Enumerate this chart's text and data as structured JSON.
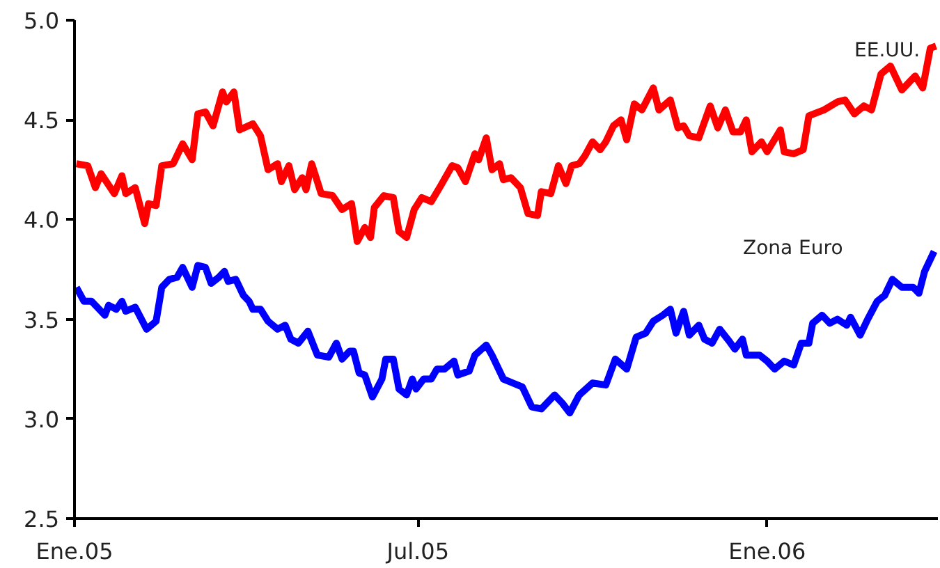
{
  "chart_data": {
    "type": "line",
    "xlim": [
      "2005-01-01",
      "2006-04-01"
    ],
    "xticks": [
      {
        "value": "2005-01-01",
        "label": "Ene.05"
      },
      {
        "value": "2005-07-01",
        "label": "Jul.05"
      },
      {
        "value": "2006-01-01",
        "label": "Ene.06"
      }
    ],
    "ylim": [
      2.5,
      5.0
    ],
    "yticks": [
      {
        "value": 2.5,
        "label": "2.5"
      },
      {
        "value": 3.0,
        "label": "3.0"
      },
      {
        "value": 3.5,
        "label": "3.5"
      },
      {
        "value": 4.0,
        "label": "4.0"
      },
      {
        "value": 4.5,
        "label": "4.5"
      },
      {
        "value": 5.0,
        "label": "5.0"
      }
    ],
    "grid": false,
    "legend": false,
    "marker": "none",
    "line_style": "solid",
    "series": [
      {
        "name": "EE.UU.",
        "color": "#ff0000",
        "x": [
          "2005-01-02",
          "2005-01-08",
          "2005-01-12",
          "2005-01-15",
          "2005-01-22",
          "2005-01-26",
          "2005-01-28",
          "2005-02-02",
          "2005-02-07",
          "2005-02-09",
          "2005-02-13",
          "2005-02-16",
          "2005-02-22",
          "2005-02-27",
          "2005-03-04",
          "2005-03-07",
          "2005-03-11",
          "2005-03-15",
          "2005-03-20",
          "2005-03-22",
          "2005-03-26",
          "2005-03-29",
          "2005-04-05",
          "2005-04-09",
          "2005-04-13",
          "2005-04-18",
          "2005-04-20",
          "2005-04-24",
          "2005-04-27",
          "2005-05-01",
          "2005-05-03",
          "2005-05-06",
          "2005-05-11",
          "2005-05-17",
          "2005-05-22",
          "2005-05-27",
          "2005-05-30",
          "2005-06-03",
          "2005-06-06",
          "2005-06-08",
          "2005-06-13",
          "2005-06-18",
          "2005-06-21",
          "2005-06-25",
          "2005-06-29",
          "2005-07-03",
          "2005-07-08",
          "2005-07-13",
          "2005-07-19",
          "2005-07-22",
          "2005-07-26",
          "2005-07-31",
          "2005-08-02",
          "2005-08-06",
          "2005-08-09",
          "2005-08-13",
          "2005-08-15",
          "2005-08-19",
          "2005-08-24",
          "2005-08-28",
          "2005-09-02",
          "2005-09-04",
          "2005-09-09",
          "2005-09-13",
          "2005-09-17",
          "2005-09-20",
          "2005-09-24",
          "2005-09-27",
          "2005-10-01",
          "2005-10-05",
          "2005-10-08",
          "2005-10-12",
          "2005-10-16",
          "2005-10-19",
          "2005-10-23",
          "2005-10-27",
          "2005-11-02",
          "2005-11-05",
          "2005-11-11",
          "2005-11-15",
          "2005-11-18",
          "2005-11-21",
          "2005-11-26",
          "2005-12-02",
          "2005-12-06",
          "2005-12-10",
          "2005-12-14",
          "2005-12-18",
          "2005-12-21",
          "2005-12-24",
          "2005-12-29",
          "2006-01-01",
          "2006-01-08",
          "2006-01-10",
          "2006-01-15",
          "2006-01-20",
          "2006-01-23",
          "2006-01-31",
          "2006-02-07",
          "2006-02-11",
          "2006-02-16",
          "2006-02-21",
          "2006-02-25",
          "2006-03-02",
          "2006-03-07",
          "2006-03-13",
          "2006-03-17",
          "2006-03-20",
          "2006-03-24",
          "2006-03-28",
          "2006-03-31"
        ],
        "values": [
          4.28,
          4.27,
          4.16,
          4.23,
          4.13,
          4.22,
          4.13,
          4.16,
          3.98,
          4.08,
          4.07,
          4.27,
          4.28,
          4.38,
          4.3,
          4.53,
          4.54,
          4.47,
          4.64,
          4.59,
          4.64,
          4.45,
          4.48,
          4.42,
          4.25,
          4.28,
          4.19,
          4.27,
          4.15,
          4.21,
          4.15,
          4.28,
          4.13,
          4.12,
          4.05,
          4.08,
          3.89,
          3.96,
          3.91,
          4.06,
          4.12,
          4.11,
          3.94,
          3.91,
          4.05,
          4.11,
          4.09,
          4.17,
          4.27,
          4.26,
          4.19,
          4.33,
          4.3,
          4.41,
          4.25,
          4.28,
          4.2,
          4.21,
          4.16,
          4.03,
          4.02,
          4.14,
          4.13,
          4.27,
          4.18,
          4.27,
          4.28,
          4.32,
          4.39,
          4.35,
          4.39,
          4.47,
          4.5,
          4.4,
          4.58,
          4.55,
          4.66,
          4.55,
          4.6,
          4.46,
          4.47,
          4.42,
          4.41,
          4.57,
          4.46,
          4.55,
          4.44,
          4.44,
          4.5,
          4.34,
          4.39,
          4.34,
          4.45,
          4.34,
          4.33,
          4.35,
          4.52,
          4.55,
          4.59,
          4.6,
          4.53,
          4.57,
          4.55,
          4.73,
          4.77,
          4.65,
          4.69,
          4.72,
          4.66,
          4.86,
          4.87
        ]
      },
      {
        "name": "Zona Euro",
        "color": "#0000ff",
        "x": [
          "2005-01-02",
          "2005-01-06",
          "2005-01-10",
          "2005-01-13",
          "2005-01-17",
          "2005-01-19",
          "2005-01-23",
          "2005-01-26",
          "2005-01-28",
          "2005-02-02",
          "2005-02-08",
          "2005-02-13",
          "2005-02-16",
          "2005-02-20",
          "2005-02-24",
          "2005-02-27",
          "2005-03-04",
          "2005-03-07",
          "2005-03-11",
          "2005-03-14",
          "2005-03-18",
          "2005-03-21",
          "2005-03-23",
          "2005-03-27",
          "2005-03-31",
          "2005-04-03",
          "2005-04-05",
          "2005-04-09",
          "2005-04-13",
          "2005-04-18",
          "2005-04-22",
          "2005-04-25",
          "2005-04-29",
          "2005-05-04",
          "2005-05-09",
          "2005-05-15",
          "2005-05-19",
          "2005-05-22",
          "2005-05-26",
          "2005-05-28",
          "2005-05-31",
          "2005-06-03",
          "2005-06-07",
          "2005-06-12",
          "2005-06-14",
          "2005-06-18",
          "2005-06-21",
          "2005-06-25",
          "2005-06-28",
          "2005-06-30",
          "2005-07-04",
          "2005-07-08",
          "2005-07-11",
          "2005-07-15",
          "2005-07-20",
          "2005-07-22",
          "2005-07-28",
          "2005-07-31",
          "2005-08-06",
          "2005-08-09",
          "2005-08-15",
          "2005-08-20",
          "2005-08-25",
          "2005-08-30",
          "2005-09-04",
          "2005-09-08",
          "2005-09-11",
          "2005-09-15",
          "2005-09-19",
          "2005-09-24",
          "2005-10-01",
          "2005-10-08",
          "2005-10-13",
          "2005-10-19",
          "2005-10-24",
          "2005-10-29",
          "2005-11-02",
          "2005-11-07",
          "2005-11-11",
          "2005-11-14",
          "2005-11-18",
          "2005-11-21",
          "2005-11-26",
          "2005-11-29",
          "2005-12-03",
          "2005-12-07",
          "2005-12-12",
          "2005-12-15",
          "2005-12-19",
          "2005-12-21",
          "2005-12-28",
          "2006-01-01",
          "2006-01-05",
          "2006-01-10",
          "2006-01-15",
          "2006-01-19",
          "2006-01-23",
          "2006-01-25",
          "2006-01-30",
          "2006-02-03",
          "2006-02-07",
          "2006-02-12",
          "2006-02-14",
          "2006-02-19",
          "2006-02-23",
          "2006-02-28",
          "2006-03-04",
          "2006-03-08",
          "2006-03-13",
          "2006-03-19",
          "2006-03-22",
          "2006-03-25",
          "2006-03-30"
        ],
        "values": [
          3.66,
          3.59,
          3.59,
          3.56,
          3.52,
          3.57,
          3.55,
          3.59,
          3.54,
          3.56,
          3.45,
          3.49,
          3.66,
          3.7,
          3.71,
          3.76,
          3.66,
          3.77,
          3.76,
          3.68,
          3.71,
          3.74,
          3.69,
          3.7,
          3.62,
          3.59,
          3.55,
          3.55,
          3.49,
          3.45,
          3.47,
          3.4,
          3.38,
          3.44,
          3.32,
          3.31,
          3.38,
          3.3,
          3.34,
          3.34,
          3.23,
          3.22,
          3.11,
          3.2,
          3.3,
          3.3,
          3.15,
          3.12,
          3.2,
          3.15,
          3.2,
          3.2,
          3.25,
          3.25,
          3.29,
          3.22,
          3.24,
          3.32,
          3.37,
          3.32,
          3.2,
          3.18,
          3.16,
          3.06,
          3.05,
          3.09,
          3.12,
          3.08,
          3.03,
          3.12,
          3.18,
          3.17,
          3.3,
          3.25,
          3.41,
          3.43,
          3.49,
          3.52,
          3.55,
          3.43,
          3.54,
          3.42,
          3.47,
          3.4,
          3.38,
          3.45,
          3.39,
          3.35,
          3.4,
          3.32,
          3.32,
          3.29,
          3.25,
          3.29,
          3.27,
          3.38,
          3.38,
          3.48,
          3.52,
          3.48,
          3.5,
          3.47,
          3.51,
          3.42,
          3.5,
          3.59,
          3.62,
          3.7,
          3.66,
          3.66,
          3.63,
          3.74,
          3.84
        ]
      }
    ]
  }
}
